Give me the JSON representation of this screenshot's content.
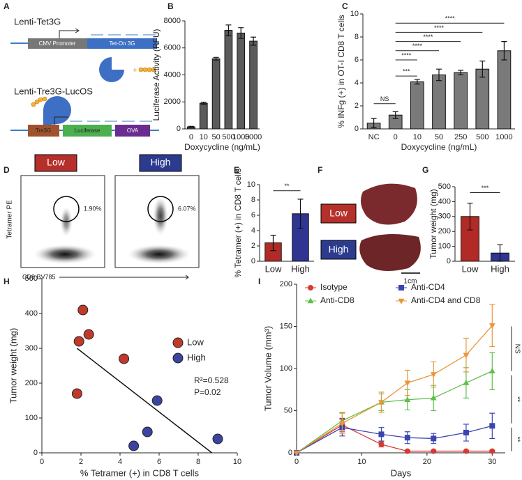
{
  "panel_labels": [
    "A",
    "B",
    "C",
    "D",
    "E",
    "F",
    "G",
    "H",
    "I"
  ],
  "schematic": {
    "vector1": "Lenti-Tet3G",
    "promoter": "CMV Promoter",
    "transactivator": "Tet-On 3G",
    "plus": "+",
    "vector2": "Lenti-Tre3G-LucOS",
    "tre": "Tre3G",
    "luciferase": "Luciferase",
    "ova": "OVA"
  },
  "flow": {
    "y_label": "Tetramer PE",
    "x_label": "CD8 BV785",
    "plots": [
      {
        "label": "Low",
        "gate": "1.90%"
      },
      {
        "label": "High",
        "gate": "6.07%"
      }
    ]
  },
  "liver": {
    "groups": [
      "Low",
      "High"
    ],
    "scale_bar": "1cm"
  },
  "chart_data": [
    {
      "type": "bar",
      "x_label": "Doxycycline (ng/mL)",
      "y_label": "Luciferase Activity (RFU)",
      "categories": [
        "0",
        "10",
        "50",
        "500",
        "1000",
        "5000"
      ],
      "values": [
        150,
        1900,
        5200,
        7300,
        7100,
        6500
      ],
      "errors": [
        40,
        80,
        100,
        400,
        400,
        300
      ],
      "color": "#5b5b5b",
      "ylim": [
        0,
        8000
      ],
      "yticks": [
        0,
        2000,
        4000,
        6000,
        8000
      ]
    },
    {
      "type": "bar",
      "x_label": "Doxycycline (ng/mL)",
      "y_label": "% INFg (+) in OT-I CD8 T cells",
      "categories": [
        "NC",
        "0",
        "10",
        "50",
        "250",
        "500",
        "1000"
      ],
      "values": [
        0.5,
        1.2,
        4.1,
        4.7,
        4.9,
        5.2,
        6.8
      ],
      "errors": [
        0.4,
        0.3,
        0.2,
        0.5,
        0.2,
        0.7,
        0.8
      ],
      "color": "#7a7a7a",
      "ylim": [
        0,
        10
      ],
      "yticks": [
        0,
        2,
        4,
        6,
        8,
        10
      ],
      "annotations": [
        "NS",
        "***",
        "****",
        "****",
        "****",
        "****",
        "****"
      ]
    },
    {
      "type": "bar",
      "y_label": "% Tetramer (+) in CD8 T cells",
      "categories": [
        "Low",
        "High"
      ],
      "values": [
        2.4,
        6.2
      ],
      "errors": [
        1.0,
        1.9
      ],
      "colors": [
        "#b22a25",
        "#2f3591"
      ],
      "ylim": [
        0,
        10
      ],
      "yticks": [
        0,
        2,
        4,
        6,
        8,
        10
      ],
      "annotations": [
        "**"
      ]
    },
    {
      "type": "bar",
      "y_label": "Tumor weight (mg)",
      "categories": [
        "Low",
        "High"
      ],
      "values": [
        300,
        55
      ],
      "errors": [
        90,
        55
      ],
      "colors": [
        "#b22a25",
        "#2f3591"
      ],
      "ylim": [
        0,
        500
      ],
      "yticks": [
        0,
        100,
        200,
        300,
        400,
        500
      ],
      "annotations": [
        "***"
      ]
    },
    {
      "type": "scatter",
      "x_label": "% Tetramer (+) in CD8 T cells",
      "y_label": "Tumor weight (mg)",
      "series": [
        {
          "name": "Low",
          "color": "#c0392b",
          "x": [
            2.1,
            1.9,
            2.4,
            4.2,
            1.8
          ],
          "values": [
            410,
            320,
            340,
            270,
            170
          ]
        },
        {
          "name": "High",
          "color": "#3b45a0",
          "x": [
            5.9,
            5.4,
            4.7,
            9.0
          ],
          "values": [
            150,
            60,
            20,
            40
          ]
        }
      ],
      "fit": {
        "x": [
          1.8,
          8.7
        ],
        "values": [
          300,
          0
        ]
      },
      "annotations": [
        "R²=0.528",
        "P=0.02"
      ],
      "xlim": [
        0,
        10
      ],
      "xticks": [
        0,
        2,
        4,
        6,
        8,
        10
      ],
      "ylim": [
        0,
        500
      ],
      "yticks": [
        0,
        100,
        200,
        300,
        400,
        500
      ]
    },
    {
      "type": "line",
      "x_label": "Days",
      "y_label": "Tumor Volume (mm³)",
      "x": [
        0,
        7,
        13,
        17,
        21,
        26,
        30
      ],
      "series": [
        {
          "name": "Isotype",
          "color": "#d63a33",
          "marker": "circle",
          "values": [
            0,
            33,
            10,
            2,
            2,
            2,
            2
          ],
          "errors": [
            0,
            8,
            3,
            1,
            1,
            1,
            1
          ]
        },
        {
          "name": "Anti-CD8",
          "color": "#5fbf4a",
          "marker": "triangle",
          "values": [
            0,
            38,
            60,
            63,
            65,
            83,
            97
          ],
          "errors": [
            0,
            10,
            10,
            12,
            15,
            18,
            22
          ]
        },
        {
          "name": "Anti-CD4",
          "color": "#3b45b0",
          "marker": "square",
          "values": [
            0,
            30,
            22,
            18,
            17,
            24,
            32
          ],
          "errors": [
            0,
            10,
            8,
            7,
            6,
            10,
            15
          ]
        },
        {
          "name": "Anti-CD4 and CD8",
          "color": "#e9963a",
          "marker": "triangle-down",
          "values": [
            0,
            35,
            60,
            83,
            93,
            116,
            151
          ],
          "errors": [
            0,
            12,
            12,
            15,
            15,
            20,
            25
          ]
        }
      ],
      "annotations": [
        "NS",
        "**",
        "**"
      ],
      "xlim": [
        0,
        32
      ],
      "xticks": [
        0,
        10,
        20,
        30
      ],
      "ylim": [
        0,
        200
      ],
      "yticks": [
        0,
        50,
        100,
        150,
        200
      ]
    }
  ]
}
